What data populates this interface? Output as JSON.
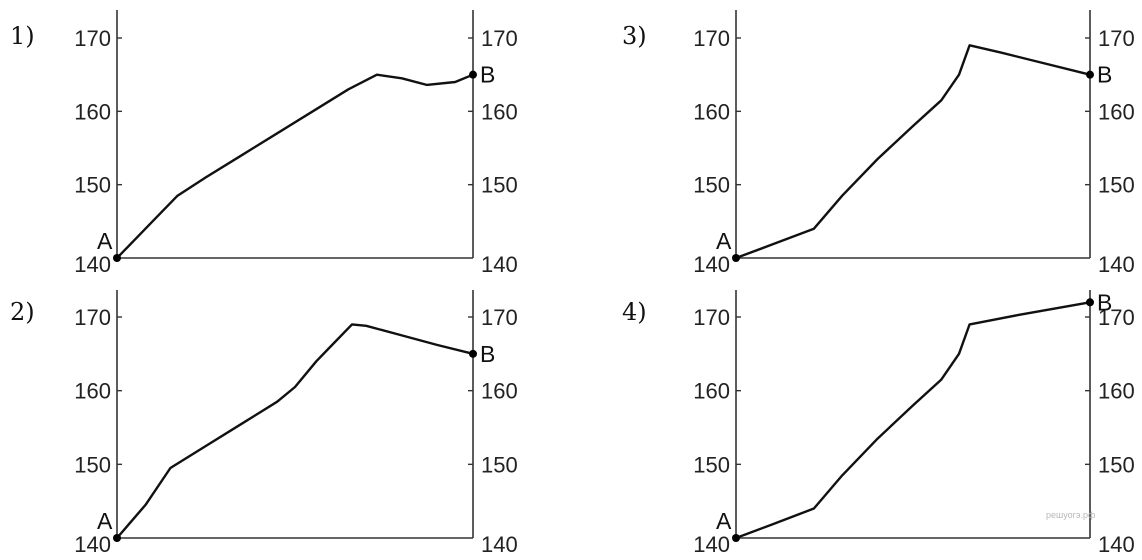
{
  "watermark": "решуогэ.рф",
  "chart_data": [
    {
      "type": "line",
      "title": "1)",
      "yticks": [
        140,
        150,
        160,
        170
      ],
      "ylim": [
        140,
        173
      ],
      "xlim": [
        0,
        100
      ],
      "x": [
        0,
        5,
        10,
        17,
        25,
        35,
        45,
        55,
        65,
        73,
        80,
        87,
        95,
        100
      ],
      "values": [
        140,
        142.5,
        145,
        148.5,
        151,
        154,
        157,
        160,
        163,
        165,
        164.5,
        163.6,
        164,
        165
      ],
      "start_label": "A",
      "end_label": "B"
    },
    {
      "type": "line",
      "title": "2)",
      "yticks": [
        140,
        150,
        160,
        170
      ],
      "ylim": [
        140,
        173
      ],
      "xlim": [
        0,
        100
      ],
      "x": [
        0,
        8,
        15,
        25,
        35,
        45,
        50,
        56,
        60,
        66,
        70,
        80,
        90,
        100
      ],
      "values": [
        140,
        144.5,
        149.5,
        152.5,
        155.5,
        158.5,
        160.5,
        164,
        166,
        169,
        168.8,
        167.5,
        166.2,
        165
      ],
      "start_label": "A",
      "end_label": "B"
    },
    {
      "type": "line",
      "title": "3)",
      "yticks": [
        140,
        150,
        160,
        170
      ],
      "ylim": [
        140,
        173
      ],
      "xlim": [
        0,
        100
      ],
      "x": [
        0,
        10,
        22,
        30,
        40,
        50,
        58,
        63,
        66,
        75,
        85,
        100
      ],
      "values": [
        140,
        141.8,
        144,
        148.5,
        153.5,
        158,
        161.5,
        165,
        169,
        168,
        166.8,
        165
      ],
      "start_label": "A",
      "end_label": "B"
    },
    {
      "type": "line",
      "title": "4)",
      "yticks": [
        140,
        150,
        160,
        170
      ],
      "ylim": [
        140,
        173
      ],
      "xlim": [
        0,
        100
      ],
      "x": [
        0,
        10,
        22,
        30,
        40,
        50,
        58,
        63,
        66,
        80,
        100
      ],
      "values": [
        140,
        141.8,
        144,
        148.5,
        153.5,
        158,
        161.5,
        165,
        169,
        170.3,
        172
      ],
      "start_label": "A",
      "end_label": "B"
    }
  ]
}
